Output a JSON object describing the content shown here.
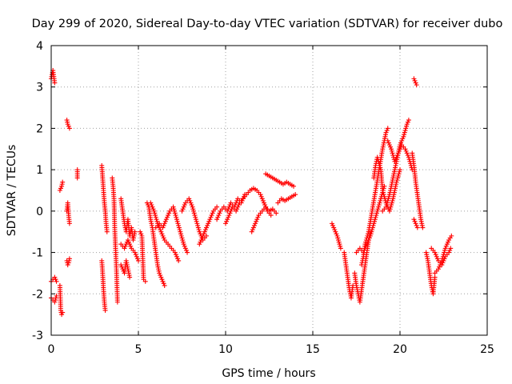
{
  "chart_data": {
    "type": "scatter",
    "title": "Day 299 of 2020, Sidereal Day-to-day VTEC variation (SDTVAR) for receiver dubo",
    "xlabel": "GPS time / hours",
    "ylabel": "SDTVAR / TECUs",
    "xlim": [
      0,
      25
    ],
    "ylim": [
      -3,
      4
    ],
    "xticks": [
      "0",
      "5",
      "10",
      "15",
      "20",
      "25"
    ],
    "yticks": [
      "-3",
      "-2",
      "-1",
      "0",
      "1",
      "2",
      "3",
      "4"
    ],
    "grid": true,
    "marker": "+",
    "series_color": "#ff0000",
    "series": [
      {
        "name": "SDTVAR",
        "segments": [
          [
            [
              0.0,
              3.2
            ],
            [
              0.05,
              3.3
            ],
            [
              0.1,
              3.4
            ],
            [
              0.15,
              3.25
            ],
            [
              0.2,
              3.1
            ]
          ],
          [
            [
              0.0,
              -1.7
            ],
            [
              0.1,
              -1.65
            ],
            [
              0.2,
              -1.6
            ],
            [
              0.3,
              -1.7
            ]
          ],
          [
            [
              0.0,
              -2.1
            ],
            [
              0.1,
              -2.15
            ],
            [
              0.2,
              -2.2
            ],
            [
              0.3,
              -2.05
            ]
          ],
          [
            [
              0.5,
              -1.8
            ],
            [
              0.55,
              -2.4
            ],
            [
              0.6,
              -2.5
            ],
            [
              0.65,
              -2.45
            ]
          ],
          [
            [
              0.5,
              0.5
            ],
            [
              0.55,
              0.55
            ],
            [
              0.6,
              0.6
            ],
            [
              0.65,
              0.7
            ]
          ],
          [
            [
              0.9,
              2.2
            ],
            [
              0.95,
              2.1
            ],
            [
              1.0,
              2.05
            ],
            [
              1.05,
              2.0
            ]
          ],
          [
            [
              0.9,
              0.0
            ],
            [
              0.95,
              0.2
            ],
            [
              1.0,
              -0.1
            ],
            [
              1.05,
              -0.3
            ]
          ],
          [
            [
              0.9,
              -1.2
            ],
            [
              0.95,
              -1.3
            ],
            [
              1.0,
              -1.25
            ],
            [
              1.05,
              -1.15
            ]
          ],
          [
            [
              1.5,
              1.0
            ],
            [
              1.5,
              0.8
            ]
          ],
          [
            [
              2.9,
              1.1
            ],
            [
              2.95,
              0.8
            ],
            [
              3.0,
              0.5
            ],
            [
              3.05,
              0.2
            ],
            [
              3.1,
              0.0
            ],
            [
              3.15,
              -0.3
            ],
            [
              3.2,
              -0.5
            ]
          ],
          [
            [
              2.9,
              -1.2
            ],
            [
              2.95,
              -1.5
            ],
            [
              3.0,
              -1.9
            ],
            [
              3.05,
              -2.2
            ],
            [
              3.1,
              -2.4
            ]
          ],
          [
            [
              3.5,
              0.8
            ],
            [
              3.55,
              0.6
            ],
            [
              3.6,
              0.3
            ],
            [
              3.65,
              -0.5
            ],
            [
              3.7,
              -1.0
            ],
            [
              3.75,
              -1.5
            ],
            [
              3.8,
              -2.2
            ]
          ],
          [
            [
              4.0,
              0.3
            ],
            [
              4.1,
              0.0
            ],
            [
              4.2,
              -0.3
            ],
            [
              4.3,
              -0.5
            ],
            [
              4.4,
              -0.2
            ],
            [
              4.5,
              -0.6
            ],
            [
              4.6,
              -0.4
            ],
            [
              4.7,
              -0.7
            ],
            [
              4.8,
              -0.5
            ]
          ],
          [
            [
              4.0,
              -1.3
            ],
            [
              4.1,
              -1.4
            ],
            [
              4.2,
              -1.5
            ],
            [
              4.3,
              -1.2
            ],
            [
              4.4,
              -1.4
            ],
            [
              4.5,
              -1.6
            ]
          ],
          [
            [
              4.0,
              -0.8
            ],
            [
              4.2,
              -0.9
            ],
            [
              4.4,
              -0.7
            ],
            [
              4.6,
              -0.9
            ],
            [
              4.8,
              -1.0
            ],
            [
              5.0,
              -1.2
            ]
          ],
          [
            [
              5.1,
              -0.5
            ],
            [
              5.2,
              -0.6
            ],
            [
              5.3,
              -1.65
            ],
            [
              5.4,
              -1.7
            ]
          ],
          [
            [
              5.5,
              0.2
            ],
            [
              5.6,
              0.1
            ],
            [
              5.7,
              -0.2
            ],
            [
              5.8,
              -0.4
            ],
            [
              5.9,
              -0.7
            ],
            [
              6.0,
              -1.0
            ],
            [
              6.1,
              -1.3
            ],
            [
              6.2,
              -1.5
            ],
            [
              6.3,
              -1.6
            ],
            [
              6.4,
              -1.7
            ],
            [
              6.5,
              -1.8
            ]
          ],
          [
            [
              5.7,
              0.2
            ],
            [
              5.9,
              0.0
            ],
            [
              6.1,
              -0.3
            ],
            [
              6.3,
              -0.5
            ],
            [
              6.5,
              -0.7
            ],
            [
              6.7,
              -0.8
            ],
            [
              6.9,
              -0.9
            ],
            [
              7.1,
              -1.0
            ],
            [
              7.3,
              -1.2
            ]
          ],
          [
            [
              6.0,
              -0.4
            ],
            [
              6.2,
              -0.3
            ],
            [
              6.4,
              -0.4
            ],
            [
              6.6,
              -0.2
            ],
            [
              6.8,
              0.0
            ],
            [
              7.0,
              0.1
            ],
            [
              7.2,
              -0.2
            ],
            [
              7.4,
              -0.5
            ],
            [
              7.6,
              -0.8
            ],
            [
              7.8,
              -1.0
            ]
          ],
          [
            [
              7.5,
              0.0
            ],
            [
              7.7,
              0.2
            ],
            [
              7.9,
              0.3
            ],
            [
              8.1,
              0.1
            ],
            [
              8.3,
              -0.2
            ],
            [
              8.5,
              -0.5
            ],
            [
              8.7,
              -0.7
            ],
            [
              8.9,
              -0.6
            ]
          ],
          [
            [
              8.5,
              -0.8
            ],
            [
              8.7,
              -0.6
            ],
            [
              8.9,
              -0.4
            ],
            [
              9.1,
              -0.2
            ],
            [
              9.3,
              0.0
            ],
            [
              9.5,
              0.1
            ]
          ],
          [
            [
              9.5,
              -0.2
            ],
            [
              9.7,
              0.0
            ],
            [
              9.9,
              0.1
            ],
            [
              10.1,
              0.0
            ],
            [
              10.3,
              0.2
            ],
            [
              10.5,
              0.1
            ],
            [
              10.7,
              0.3
            ],
            [
              10.9,
              0.2
            ],
            [
              11.1,
              0.4
            ]
          ],
          [
            [
              10.0,
              -0.3
            ],
            [
              10.2,
              -0.1
            ],
            [
              10.4,
              0.1
            ],
            [
              10.6,
              0.0
            ],
            [
              10.8,
              0.2
            ],
            [
              11.0,
              0.3
            ]
          ],
          [
            [
              11.0,
              0.3
            ],
            [
              11.2,
              0.4
            ],
            [
              11.4,
              0.5
            ],
            [
              11.6,
              0.55
            ],
            [
              11.8,
              0.5
            ],
            [
              12.0,
              0.4
            ],
            [
              12.2,
              0.2
            ],
            [
              12.4,
              0.0
            ],
            [
              12.6,
              -0.1
            ]
          ],
          [
            [
              11.5,
              -0.5
            ],
            [
              11.7,
              -0.3
            ],
            [
              11.9,
              -0.1
            ],
            [
              12.1,
              0.0
            ],
            [
              12.3,
              0.1
            ],
            [
              12.5,
              0.0
            ],
            [
              12.7,
              0.05
            ],
            [
              12.9,
              -0.05
            ]
          ],
          [
            [
              12.3,
              0.9
            ],
            [
              12.5,
              0.85
            ],
            [
              12.7,
              0.8
            ],
            [
              12.9,
              0.75
            ],
            [
              13.1,
              0.7
            ],
            [
              13.3,
              0.65
            ],
            [
              13.5,
              0.7
            ],
            [
              13.7,
              0.65
            ],
            [
              13.9,
              0.6
            ]
          ],
          [
            [
              13.0,
              0.2
            ],
            [
              13.2,
              0.3
            ],
            [
              13.4,
              0.25
            ],
            [
              13.6,
              0.3
            ],
            [
              13.8,
              0.35
            ],
            [
              14.0,
              0.4
            ]
          ],
          [
            [
              16.1,
              -0.3
            ],
            [
              16.2,
              -0.4
            ],
            [
              16.3,
              -0.5
            ],
            [
              16.4,
              -0.6
            ],
            [
              16.5,
              -0.75
            ],
            [
              16.6,
              -0.9
            ]
          ],
          [
            [
              16.8,
              -1.0
            ],
            [
              16.9,
              -1.3
            ],
            [
              17.0,
              -1.6
            ],
            [
              17.1,
              -1.9
            ],
            [
              17.2,
              -2.1
            ],
            [
              17.3,
              -1.8
            ]
          ],
          [
            [
              17.4,
              -1.5
            ],
            [
              17.5,
              -1.8
            ],
            [
              17.6,
              -2.0
            ],
            [
              17.7,
              -2.2
            ],
            [
              17.8,
              -1.9
            ],
            [
              17.9,
              -1.6
            ],
            [
              18.0,
              -1.3
            ],
            [
              18.1,
              -1.0
            ],
            [
              18.2,
              -0.7
            ],
            [
              18.3,
              -0.5
            ]
          ],
          [
            [
              17.5,
              -1.0
            ],
            [
              17.7,
              -0.9
            ],
            [
              17.9,
              -1.0
            ],
            [
              18.1,
              -0.8
            ],
            [
              18.3,
              -0.6
            ],
            [
              18.5,
              -0.3
            ],
            [
              18.7,
              0.0
            ],
            [
              18.9,
              0.3
            ],
            [
              19.1,
              0.6
            ]
          ],
          [
            [
              17.8,
              -1.3
            ],
            [
              17.9,
              -1.1
            ],
            [
              18.0,
              -0.8
            ],
            [
              18.2,
              -0.5
            ],
            [
              18.4,
              0.0
            ],
            [
              18.6,
              0.5
            ],
            [
              18.8,
              1.0
            ],
            [
              19.0,
              1.5
            ],
            [
              19.2,
              1.9
            ],
            [
              19.3,
              2.0
            ]
          ],
          [
            [
              18.5,
              0.8
            ],
            [
              18.6,
              1.1
            ],
            [
              18.7,
              1.3
            ],
            [
              18.9,
              1.0
            ],
            [
              19.0,
              0.5
            ],
            [
              19.2,
              0.2
            ],
            [
              19.4,
              0.0
            ],
            [
              19.6,
              0.3
            ],
            [
              19.8,
              0.7
            ],
            [
              20.0,
              1.0
            ]
          ],
          [
            [
              19.0,
              0.0
            ],
            [
              19.2,
              0.1
            ],
            [
              19.4,
              0.4
            ],
            [
              19.6,
              0.8
            ],
            [
              19.8,
              1.2
            ],
            [
              20.0,
              1.6
            ],
            [
              20.2,
              1.8
            ],
            [
              20.4,
              2.1
            ],
            [
              20.5,
              2.2
            ]
          ],
          [
            [
              19.3,
              1.7
            ],
            [
              19.5,
              1.5
            ],
            [
              19.7,
              1.2
            ],
            [
              19.9,
              1.4
            ],
            [
              20.1,
              1.6
            ],
            [
              20.3,
              1.5
            ],
            [
              20.5,
              1.3
            ],
            [
              20.7,
              1.0
            ]
          ],
          [
            [
              20.8,
              3.2
            ],
            [
              20.85,
              3.15
            ],
            [
              20.9,
              3.1
            ],
            [
              20.95,
              3.05
            ]
          ],
          [
            [
              20.7,
              1.4
            ],
            [
              20.8,
              1.1
            ],
            [
              20.9,
              0.7
            ],
            [
              21.0,
              0.4
            ],
            [
              21.1,
              0.1
            ],
            [
              21.2,
              -0.2
            ],
            [
              21.3,
              -0.4
            ]
          ],
          [
            [
              20.8,
              -0.2
            ],
            [
              20.9,
              -0.3
            ],
            [
              21.0,
              -0.4
            ]
          ],
          [
            [
              21.5,
              -1.0
            ],
            [
              21.6,
              -1.2
            ],
            [
              21.7,
              -1.5
            ],
            [
              21.8,
              -1.8
            ],
            [
              21.9,
              -2.0
            ],
            [
              22.0,
              -1.6
            ]
          ],
          [
            [
              21.8,
              -0.9
            ],
            [
              22.0,
              -1.0
            ],
            [
              22.2,
              -1.2
            ],
            [
              22.4,
              -1.3
            ],
            [
              22.6,
              -1.1
            ],
            [
              22.8,
              -1.0
            ],
            [
              22.9,
              -0.9
            ]
          ],
          [
            [
              22.0,
              -1.5
            ],
            [
              22.2,
              -1.4
            ],
            [
              22.4,
              -1.2
            ],
            [
              22.6,
              -0.9
            ],
            [
              22.8,
              -0.7
            ],
            [
              22.95,
              -0.6
            ]
          ]
        ]
      }
    ]
  }
}
